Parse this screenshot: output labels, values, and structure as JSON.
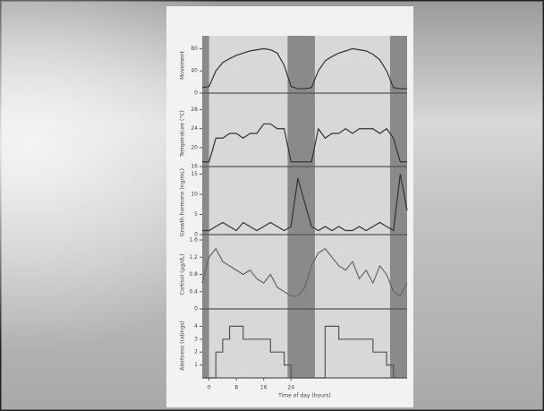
{
  "chart_data": [
    {
      "type": "line",
      "ylabel": "Movement",
      "x": [
        -2,
        0,
        2,
        4,
        6,
        8,
        10,
        12,
        14,
        16,
        18,
        20,
        22,
        24,
        26,
        28,
        30,
        32,
        34,
        36,
        38,
        40,
        42,
        44,
        46,
        48,
        50,
        52,
        54,
        56,
        58
      ],
      "values": [
        10,
        12,
        40,
        55,
        62,
        68,
        72,
        76,
        78,
        80,
        78,
        72,
        50,
        12,
        8,
        8,
        10,
        40,
        58,
        66,
        72,
        76,
        80,
        78,
        76,
        70,
        60,
        40,
        10,
        8,
        8
      ],
      "color": "#333333",
      "xlim": [
        -2,
        58
      ],
      "ylim": [
        0,
        100
      ],
      "yticks": [
        0,
        40,
        80
      ],
      "shaded_spans": [
        [
          -2,
          0
        ],
        [
          23,
          31
        ],
        [
          53,
          58
        ]
      ]
    },
    {
      "type": "line",
      "ylabel": "Temperature (°C)",
      "x": [
        -2,
        0,
        2,
        4,
        6,
        8,
        10,
        12,
        14,
        16,
        18,
        20,
        22,
        24,
        26,
        28,
        30,
        32,
        34,
        36,
        38,
        40,
        42,
        44,
        46,
        48,
        50,
        52,
        54,
        56,
        58
      ],
      "values": [
        17,
        17,
        22,
        22,
        23,
        23,
        22,
        23,
        23,
        25,
        25,
        24,
        24,
        17,
        17,
        17,
        17,
        24,
        22,
        23,
        23,
        24,
        23,
        24,
        24,
        24,
        23,
        24,
        22,
        17,
        17
      ],
      "color": "#333333",
      "xlim": [
        -2,
        58
      ],
      "ylim": [
        16,
        30
      ],
      "yticks": [
        16,
        20,
        24,
        28
      ]
    },
    {
      "type": "line",
      "ylabel": "Growth hormone (ng/mL)",
      "x": [
        -2,
        0,
        2,
        4,
        6,
        8,
        10,
        12,
        14,
        16,
        18,
        20,
        22,
        24,
        26,
        28,
        30,
        32,
        34,
        36,
        38,
        40,
        42,
        44,
        46,
        48,
        50,
        52,
        54,
        56,
        58
      ],
      "values": [
        1,
        1,
        2,
        3,
        2,
        1,
        3,
        2,
        1,
        2,
        3,
        2,
        1,
        2,
        14,
        8,
        2,
        1,
        2,
        1,
        2,
        1,
        1,
        2,
        1,
        2,
        3,
        2,
        1,
        15,
        6
      ],
      "color": "#333333",
      "xlim": [
        -2,
        58
      ],
      "ylim": [
        0,
        16
      ],
      "yticks": [
        0,
        5,
        10,
        15
      ]
    },
    {
      "type": "line",
      "ylabel": "Cortisol (µg/dL)",
      "x": [
        -2,
        0,
        2,
        4,
        6,
        8,
        10,
        12,
        14,
        16,
        18,
        20,
        22,
        24,
        26,
        28,
        30,
        32,
        34,
        36,
        38,
        40,
        42,
        44,
        46,
        48,
        50,
        52,
        54,
        56,
        58
      ],
      "values": [
        0.6,
        1.2,
        1.4,
        1.1,
        1,
        0.9,
        0.8,
        0.9,
        0.7,
        0.6,
        0.8,
        0.5,
        0.4,
        0.3,
        0.3,
        0.5,
        1.0,
        1.3,
        1.4,
        1.2,
        1.0,
        0.9,
        1.1,
        0.7,
        0.9,
        0.6,
        1.0,
        0.8,
        0.4,
        0.3,
        0.6
      ],
      "color": "#666666",
      "xlim": [
        -2,
        58
      ],
      "ylim": [
        0,
        1.6
      ],
      "yticks": [
        0,
        0.4,
        0.8,
        1.2,
        1.6
      ]
    },
    {
      "type": "step",
      "ylabel": "Alertness (ratings)",
      "x": [
        -2,
        0,
        2,
        4,
        6,
        8,
        10,
        12,
        14,
        16,
        18,
        20,
        22,
        24,
        26,
        28,
        30,
        32,
        34,
        36,
        38,
        40,
        42,
        44,
        46,
        48,
        50,
        52,
        54,
        56,
        58
      ],
      "values": [
        0,
        0,
        2,
        3,
        4,
        4,
        3,
        3,
        3,
        3,
        2,
        2,
        1,
        0,
        0,
        0,
        0,
        0,
        4,
        4,
        3,
        3,
        3,
        3,
        3,
        2,
        2,
        1,
        0,
        0,
        0
      ],
      "color": "#555555",
      "xlim": [
        -2,
        58
      ],
      "ylim": [
        0,
        5
      ],
      "yticks": [
        1,
        2,
        3,
        4
      ],
      "xticks": [
        0,
        8,
        16,
        24
      ],
      "xlabel": "Time of day (hours)"
    }
  ]
}
